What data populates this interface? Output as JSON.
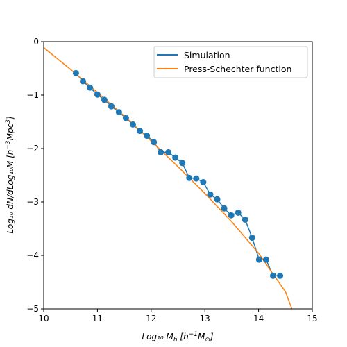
{
  "chart_data": {
    "type": "line",
    "xlabel": "Log₁₀ M",
    "xlabel_sub": "h",
    "xlabel_unit_a": " [h",
    "xlabel_unit_exp": "−1",
    "xlabel_unit_b": "M",
    "xlabel_unit_sub": "⊙",
    "xlabel_unit_c": "]",
    "ylabel": "Log₁₀ dN/dLog₁₀M [h",
    "ylabel_exp": "−3",
    "ylabel_b": "Mpc",
    "ylabel_exp2": "3",
    "ylabel_c": "]",
    "xlim": [
      10,
      15
    ],
    "ylim": [
      -5,
      0
    ],
    "xticks": [
      "10",
      "11",
      "12",
      "13",
      "14",
      "15"
    ],
    "yticks": [
      "0",
      "−1",
      "−2",
      "−3",
      "−4",
      "−5"
    ],
    "grid": false,
    "legend_position": "top-right",
    "series": [
      {
        "name": "Simulation",
        "color": "#1f77b4",
        "marker": "circle",
        "x": [
          10.6,
          10.73,
          10.86,
          11.0,
          11.13,
          11.26,
          11.4,
          11.53,
          11.66,
          11.79,
          11.92,
          12.05,
          12.18,
          12.32,
          12.45,
          12.58,
          12.71,
          12.84,
          12.97,
          13.1,
          13.23,
          13.36,
          13.49,
          13.62,
          13.75,
          13.88,
          14.01,
          14.14,
          14.27,
          14.4
        ],
        "y": [
          -0.59,
          -0.74,
          -0.86,
          -0.99,
          -1.09,
          -1.21,
          -1.32,
          -1.43,
          -1.55,
          -1.67,
          -1.76,
          -1.88,
          -2.07,
          -2.07,
          -2.17,
          -2.27,
          -2.55,
          -2.56,
          -2.63,
          -2.86,
          -2.95,
          -3.12,
          -3.25,
          -3.2,
          -3.33,
          -3.67,
          -4.08,
          -4.08,
          -4.38,
          -4.38
        ]
      },
      {
        "name": "Press-Schechter function",
        "color": "#ff7f0e",
        "x": [
          10.0,
          10.5,
          11.0,
          11.5,
          12.0,
          12.5,
          13.0,
          13.5,
          14.0,
          14.5,
          14.62
        ],
        "y": [
          -0.11,
          -0.52,
          -0.95,
          -1.39,
          -1.86,
          -2.34,
          -2.84,
          -3.37,
          -3.96,
          -4.68,
          -5.0
        ]
      }
    ]
  }
}
